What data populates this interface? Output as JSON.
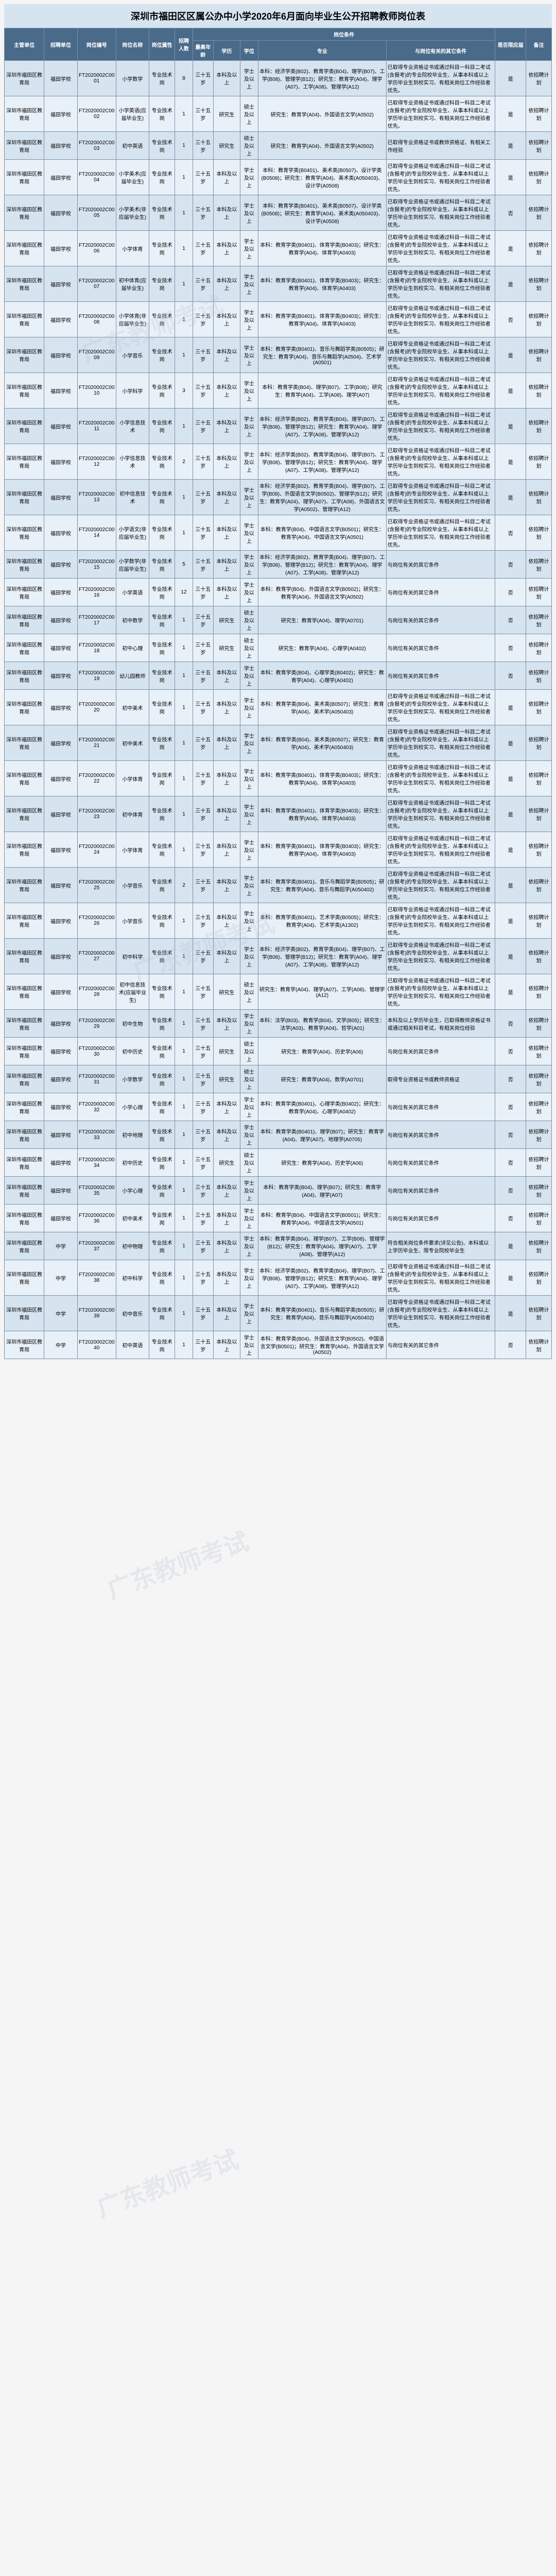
{
  "title": "深圳市福田区区属公办中小学2020年6月面向毕业生公开招聘教师岗位表",
  "watermark": "广东教师考试",
  "headerGroup": "岗位条件",
  "columns": [
    "主管单位",
    "招聘单位",
    "岗位编号",
    "岗位名称",
    "岗位属性",
    "招聘人数",
    "最高年龄",
    "学历",
    "学位",
    "专业",
    "与岗位有关的其它条件",
    "是否限应届",
    "备注"
  ],
  "stdOther1": "已取得专业资格证书或通过科目一科目二考试(含报考)的专业院校毕业生、从事本科或以上学历毕业生到校实习、有相关岗位工作经验者优先。",
  "stdOther2": "与岗位有关的其它条件",
  "rows": [
    {
      "org": "深圳市福田区教育局",
      "unit": "福田学校",
      "code": "FT2020002C0001",
      "name": "小学数学",
      "attr": "专业技术岗",
      "num": "8",
      "max": "三十五岁",
      "edu": "本科及以上",
      "deg": "学士及以上",
      "major": "本科：经济学类(B02)、教育学类(B04)、理学(B07)、工学(B08)、管理学(B12)；研究生：教育学(A04)、理学(A07)、工学(A08)、管理学(A12)",
      "other": "std1",
      "res": "是",
      "rem": "依招聘计划"
    },
    {
      "org": "深圳市福田区教育局",
      "unit": "福田学校",
      "code": "FT2020002C0002",
      "name": "小学英语(应届毕业生)",
      "attr": "专业技术岗",
      "num": "1",
      "max": "三十五岁",
      "edu": "研究生",
      "deg": "硕士及以上",
      "major": "研究生：教育学(A04)、外国语言文学(A0502)",
      "other": "std1",
      "res": "是",
      "rem": "依招聘计划"
    },
    {
      "org": "深圳市福田区教育局",
      "unit": "福田学校",
      "code": "FT2020002C0003",
      "name": "初中英语",
      "attr": "专业技术岗",
      "num": "1",
      "max": "三十五岁",
      "edu": "研究生",
      "deg": "硕士及以上",
      "major": "研究生：教育学(A04)、外国语言文学(A0502)",
      "other": "已取得专业资格证书或教师资格证、有相关工作经验",
      "res": "是",
      "rem": "依招聘计划"
    },
    {
      "org": "深圳市福田区教育局",
      "unit": "福田学校",
      "code": "FT2020002C0004",
      "name": "小学美术(应届毕业生)",
      "attr": "专业技术岗",
      "num": "1",
      "max": "三十五岁",
      "edu": "本科及以上",
      "deg": "学士及以上",
      "major": "本科：教育学类(B0401)、美术类(B0507)、设计学类(B0508)；研究生：教育学(A04)、美术类(A050403)、设计学(A0508)",
      "other": "std1",
      "res": "是",
      "rem": "依招聘计划"
    },
    {
      "org": "深圳市福田区教育局",
      "unit": "福田学校",
      "code": "FT2020002C0005",
      "name": "小学美术(非应届毕业生)",
      "attr": "专业技术岗",
      "num": "1",
      "max": "三十五岁",
      "edu": "本科及以上",
      "deg": "学士及以上",
      "major": "本科：教育学类(B0401)、美术类(B0507)、设计学类(B0508)；研究生：教育学(A04)、美术类(A050403)、设计学(A0508)",
      "other": "std1",
      "res": "否",
      "rem": "依招聘计划"
    },
    {
      "org": "深圳市福田区教育局",
      "unit": "福田学校",
      "code": "FT2020002C0006",
      "name": "小学体育",
      "attr": "专业技术岗",
      "num": "1",
      "max": "三十五岁",
      "edu": "本科及以上",
      "deg": "学士及以上",
      "major": "本科：教育学类(B0401)、体育学类(B0403)；研究生：教育学(A04)、体育学(A0403)",
      "other": "std1",
      "res": "是",
      "rem": "依招聘计划"
    },
    {
      "org": "深圳市福田区教育局",
      "unit": "福田学校",
      "code": "FT2020002C0007",
      "name": "初中体育(应届毕业生)",
      "attr": "专业技术岗",
      "num": "1",
      "max": "三十五岁",
      "edu": "本科及以上",
      "deg": "学士及以上",
      "major": "本科：教育学类(B0401)、体育学类(B0403)；研究生：教育学(A04)、体育学(A0403)",
      "other": "std1",
      "res": "是",
      "rem": "依招聘计划"
    },
    {
      "org": "深圳市福田区教育局",
      "unit": "福田学校",
      "code": "FT2020002C0008",
      "name": "小学体育(非应届毕业生)",
      "attr": "专业技术岗",
      "num": "1",
      "max": "三十五岁",
      "edu": "本科及以上",
      "deg": "学士及以上",
      "major": "本科：教育学类(B0401)、体育学类(B0403)；研究生：教育学(A04)、体育学(A0403)",
      "other": "std1",
      "res": "否",
      "rem": "依招聘计划"
    },
    {
      "org": "深圳市福田区教育局",
      "unit": "福田学校",
      "code": "FT2020002C0009",
      "name": "小学音乐",
      "attr": "专业技术岗",
      "num": "1",
      "max": "三十五岁",
      "edu": "本科及以上",
      "deg": "学士及以上",
      "major": "本科：教育学类(B0401)、音乐与舞蹈学类(B0505)；研究生：教育学(A04)、音乐与舞蹈学(A0504)、艺术学(A0501)",
      "other": "std1",
      "res": "是",
      "rem": "依招聘计划"
    },
    {
      "org": "深圳市福田区教育局",
      "unit": "福田学校",
      "code": "FT2020002C0010",
      "name": "小学科学",
      "attr": "专业技术岗",
      "num": "3",
      "max": "三十五岁",
      "edu": "本科及以上",
      "deg": "学士及以上",
      "major": "本科：教育学类(B04)、理学(B07)、工学(B08)；研究生：教育学(A04)、工学(A08)、理学(A07)",
      "other": "std1",
      "res": "是",
      "rem": "依招聘计划"
    },
    {
      "org": "深圳市福田区教育局",
      "unit": "福田学校",
      "code": "FT2020002C0011",
      "name": "小学信息技术",
      "attr": "专业技术岗",
      "num": "1",
      "max": "三十五岁",
      "edu": "本科及以上",
      "deg": "学士及以上",
      "major": "本科：经济学类(B02)、教育学类(B04)、理学(B07)、工学(B08)、管理学(B12)；研究生：教育学(A04)、理学(A07)、工学(A08)、管理学(A12)",
      "other": "std1",
      "res": "是",
      "rem": "依招聘计划"
    },
    {
      "org": "深圳市福田区教育局",
      "unit": "福田学校",
      "code": "FT2020002C0012",
      "name": "小学信息技术",
      "attr": "专业技术岗",
      "num": "2",
      "max": "三十五岁",
      "edu": "本科及以上",
      "deg": "学士及以上",
      "major": "本科：经济学类(B02)、教育学类(B04)、理学(B07)、工学(B08)、管理学(B12)；研究生：教育学(A04)、理学(A07)、工学(A08)、管理学(A12)",
      "other": "std1",
      "res": "是",
      "rem": "依招聘计划"
    },
    {
      "org": "深圳市福田区教育局",
      "unit": "福田学校",
      "code": "FT2020002C0013",
      "name": "初中信息技术",
      "attr": "专业技术岗",
      "num": "1",
      "max": "三十五岁",
      "edu": "本科及以上",
      "deg": "学士及以上",
      "major": "本科：经济学类(B02)、教育学类(B04)、理学(B07)、工学(B08)、外国语言文学(B0502)、管理学(B12)；研究生：教育学(A04)、理学(A07)、工学(A08)、外国语言文学(A0502)、管理学(A12)",
      "other": "std1",
      "res": "是",
      "rem": "依招聘计划"
    },
    {
      "org": "深圳市福田区教育局",
      "unit": "福田学校",
      "code": "FT2020002C0014",
      "name": "小学语文(非应届毕业生)",
      "attr": "专业技术岗",
      "num": "1",
      "max": "三十五岁",
      "edu": "本科及以上",
      "deg": "学士及以上",
      "major": "本科：教育学(B04)、中国语言文学(B0501)；研究生：教育学(A04)、中国语言文学(A0501)",
      "other": "std1",
      "res": "否",
      "rem": "依招聘计划"
    },
    {
      "org": "深圳市福田区教育局",
      "unit": "福田学校",
      "code": "FT2020002C0015",
      "name": "小学数学(非应届毕业生)",
      "attr": "专业技术岗",
      "num": "5",
      "max": "三十五岁",
      "edu": "本科及以上",
      "deg": "学士及以上",
      "major": "本科：经济学类(B02)、教育学类(B04)、理学(B07)、工学(B08)、管理学(B12)；研究生：教育学(A04)、理学(A07)、工学(A08)、管理学(A12)",
      "other": "std2",
      "res": "否",
      "rem": "依招聘计划"
    },
    {
      "org": "深圳市福田区教育局",
      "unit": "福田学校",
      "code": "FT2020002C0016",
      "name": "小学英语",
      "attr": "专业技术岗",
      "num": "12",
      "max": "三十五岁",
      "edu": "本科及以上",
      "deg": "学士及以上",
      "major": "本科：教育学(B04)、外国语言文学(B0502)；研究生：教育学(A04)、外国语言文学(A0502)",
      "other": "std2",
      "res": "否",
      "rem": "依招聘计划"
    },
    {
      "org": "深圳市福田区教育局",
      "unit": "福田学校",
      "code": "FT2020002C0017",
      "name": "初中数学",
      "attr": "专业技术岗",
      "num": "1",
      "max": "三十五岁",
      "edu": "研究生",
      "deg": "硕士及以上",
      "major": "研究生：教育学(A04)、理学(A0701)",
      "other": "std2",
      "res": "否",
      "rem": "依招聘计划"
    },
    {
      "org": "深圳市福田区教育局",
      "unit": "福田学校",
      "code": "FT2020002C0018",
      "name": "初中心理",
      "attr": "专业技术岗",
      "num": "1",
      "max": "三十五岁",
      "edu": "研究生",
      "deg": "硕士及以上",
      "major": "研究生：教育学(A04)、心理学(A0402)",
      "other": "std2",
      "res": "否",
      "rem": "依招聘计划"
    },
    {
      "org": "深圳市福田区教育局",
      "unit": "福田学校",
      "code": "FT2020002C0019",
      "name": "幼儿园教师",
      "attr": "专业技术岗",
      "num": "1",
      "max": "三十五岁",
      "edu": "本科及以上",
      "deg": "学士及以上",
      "major": "本科：教育学类(B04)、心理学类(B0402)；研究生：教育学(A04)、心理学(A0402)",
      "other": "std2",
      "res": "否",
      "rem": "依招聘计划"
    },
    {
      "org": "深圳市福田区教育局",
      "unit": "福田学校",
      "code": "FT2020002C0020",
      "name": "初中美术",
      "attr": "专业技术岗",
      "num": "1",
      "max": "三十五岁",
      "edu": "本科及以上",
      "deg": "学士及以上",
      "major": "本科：教育学类(B04)、美术类(B0507)；研究生：教育学(A04)、美术学(A050403)",
      "other": "std1",
      "res": "是",
      "rem": "依招聘计划"
    },
    {
      "org": "深圳市福田区教育局",
      "unit": "福田学校",
      "code": "FT2020002C0021",
      "name": "初中美术",
      "attr": "专业技术岗",
      "num": "1",
      "max": "三十五岁",
      "edu": "本科及以上",
      "deg": "学士及以上",
      "major": "本科：教育学类(B04)、美术类(B0507)；研究生：教育学(A04)、美术学(A050403)",
      "other": "std1",
      "res": "是",
      "rem": "依招聘计划"
    },
    {
      "org": "深圳市福田区教育局",
      "unit": "福田学校",
      "code": "FT2020002C0022",
      "name": "小学体育",
      "attr": "专业技术岗",
      "num": "1",
      "max": "三十五岁",
      "edu": "本科及以上",
      "deg": "学士及以上",
      "major": "本科：教育学类(B0401)、体育学类(B0403)；研究生：教育学(A04)、体育学(A0403)",
      "other": "std1",
      "res": "是",
      "rem": "依招聘计划"
    },
    {
      "org": "深圳市福田区教育局",
      "unit": "福田学校",
      "code": "FT2020002C0023",
      "name": "初中体育",
      "attr": "专业技术岗",
      "num": "1",
      "max": "三十五岁",
      "edu": "本科及以上",
      "deg": "学士及以上",
      "major": "本科：教育学类(B0401)、体育学类(B0403)；研究生：教育学(A04)、体育学(A0403)",
      "other": "std1",
      "res": "是",
      "rem": "依招聘计划"
    },
    {
      "org": "深圳市福田区教育局",
      "unit": "福田学校",
      "code": "FT2020002C0024",
      "name": "小学体育",
      "attr": "专业技术岗",
      "num": "1",
      "max": "三十五岁",
      "edu": "本科及以上",
      "deg": "学士及以上",
      "major": "本科：教育学类(B0401)、体育学类(B0403)；研究生：教育学(A04)、体育学(A0403)",
      "other": "std1",
      "res": "是",
      "rem": "依招聘计划"
    },
    {
      "org": "深圳市福田区教育局",
      "unit": "福田学校",
      "code": "FT2020002C0025",
      "name": "小学音乐",
      "attr": "专业技术岗",
      "num": "2",
      "max": "三十五岁",
      "edu": "本科及以上",
      "deg": "学士及以上",
      "major": "本科：教育学类(B0401)、音乐与舞蹈学类(B0505)；研究生：教育学(A04)、音乐与舞蹈学(A050402)",
      "other": "std1",
      "res": "是",
      "rem": "依招聘计划"
    },
    {
      "org": "深圳市福田区教育局",
      "unit": "福田学校",
      "code": "FT2020002C0026",
      "name": "小学音乐",
      "attr": "专业技术岗",
      "num": "1",
      "max": "三十五岁",
      "edu": "本科及以上",
      "deg": "学士及以上",
      "major": "本科：教育学类(B0401)、艺术学类(B0505)；研究生：教育学(A04)、艺术学类(A1302)",
      "other": "std1",
      "res": "是",
      "rem": "依招聘计划"
    },
    {
      "org": "深圳市福田区教育局",
      "unit": "福田学校",
      "code": "FT2020002C0027",
      "name": "初中科学",
      "attr": "专业技术岗",
      "num": "1",
      "max": "三十五岁",
      "edu": "本科及以上",
      "deg": "学士及以上",
      "major": "本科：经济学类(B02)、教育学类(B04)、理学(B07)、工学(B08)、管理学(B12)；研究生：教育学(A04)、理学(A07)、工学(A08)、管理学(A12)",
      "other": "std1",
      "res": "是",
      "rem": "依招聘计划"
    },
    {
      "org": "深圳市福田区教育局",
      "unit": "福田学校",
      "code": "FT2020002C0028",
      "name": "初中信息技术(应届毕业生)",
      "attr": "专业技术岗",
      "num": "1",
      "max": "三十五岁",
      "edu": "研究生",
      "deg": "硕士及以上",
      "major": "研究生：教育学(A04)、理学(A07)、工学(A08)、管理学(A12)",
      "other": "std1",
      "res": "是",
      "rem": "依招聘计划"
    },
    {
      "org": "深圳市福田区教育局",
      "unit": "福田学校",
      "code": "FT2020002C0029",
      "name": "初中生物",
      "attr": "专业技术岗",
      "num": "1",
      "max": "三十五岁",
      "edu": "本科及以上",
      "deg": "学士及以上",
      "major": "本科：法学(B03)、教育学(B04)、文学(B05)；研究生：法学(A03)、教育学(A04)、哲学(A01)",
      "other": "本科及以上学历毕业生，已取得教师资格证书或通过相关科目考试，有相关岗位经验",
      "res": "否",
      "rem": "依招聘计划"
    },
    {
      "org": "深圳市福田区教育局",
      "unit": "福田学校",
      "code": "FT2020002C0030",
      "name": "初中历史",
      "attr": "专业技术岗",
      "num": "1",
      "max": "三十五岁",
      "edu": "研究生",
      "deg": "硕士及以上",
      "major": "研究生：教育学(A04)、历史学(A06)",
      "other": "std2",
      "res": "否",
      "rem": "依招聘计划"
    },
    {
      "org": "深圳市福田区教育局",
      "unit": "福田学校",
      "code": "FT2020002C0031",
      "name": "小学数学",
      "attr": "专业技术岗",
      "num": "1",
      "max": "三十五岁",
      "edu": "研究生",
      "deg": "硕士及以上",
      "major": "研究生：教育学(A04)、数学(A0701)",
      "other": "取得专业资格证书或教师资格证",
      "res": "否",
      "rem": "依招聘计划"
    },
    {
      "org": "深圳市福田区教育局",
      "unit": "福田学校",
      "code": "FT2020002C0032",
      "name": "小学心理",
      "attr": "专业技术岗",
      "num": "1",
      "max": "三十五岁",
      "edu": "本科及以上",
      "deg": "学士及以上",
      "major": "本科：教育学类(B0401)、心理学类(B0402)；研究生：教育学(A04)、心理学(A0402)",
      "other": "std2",
      "res": "否",
      "rem": "依招聘计划"
    },
    {
      "org": "深圳市福田区教育局",
      "unit": "福田学校",
      "code": "FT2020002C0033",
      "name": "初中地理",
      "attr": "专业技术岗",
      "num": "1",
      "max": "三十五岁",
      "edu": "本科及以上",
      "deg": "学士及以上",
      "major": "本科：教育学类(B0401)、理学(B07)；研究生：教育学(A04)、理学(A07)、地理学(A0705)",
      "other": "std2",
      "res": "否",
      "rem": "依招聘计划"
    },
    {
      "org": "深圳市福田区教育局",
      "unit": "福田学校",
      "code": "FT2020002C0034",
      "name": "初中历史",
      "attr": "专业技术岗",
      "num": "1",
      "max": "三十五岁",
      "edu": "研究生",
      "deg": "硕士及以上",
      "major": "研究生：教育学(A04)、历史学(A06)",
      "other": "std2",
      "res": "否",
      "rem": "依招聘计划"
    },
    {
      "org": "深圳市福田区教育局",
      "unit": "福田学校",
      "code": "FT2020002C0035",
      "name": "小学心理",
      "attr": "专业技术岗",
      "num": "1",
      "max": "三十五岁",
      "edu": "本科及以上",
      "deg": "学士及以上",
      "major": "本科：教育学类(B04)、理学(B07)；研究生：教育学(A04)、理学(A07)",
      "other": "std2",
      "res": "否",
      "rem": "依招聘计划"
    },
    {
      "org": "深圳市福田区教育局",
      "unit": "福田学校",
      "code": "FT2020002C0036",
      "name": "初中美术",
      "attr": "专业技术岗",
      "num": "1",
      "max": "三十五岁",
      "edu": "本科及以上",
      "deg": "学士及以上",
      "major": "本科：教育学(B04)、中国语言文学(B0501)；研究生：教育学(A04)、中国语言文学(A0501)",
      "other": "std2",
      "res": "否",
      "rem": "依招聘计划"
    },
    {
      "org": "深圳市福田区教育局",
      "unit": "中学",
      "code": "FT2020002C0037",
      "name": "初中物理",
      "attr": "专业技术岗",
      "num": "1",
      "max": "三十五岁",
      "edu": "本科及以上",
      "deg": "学士及以上",
      "major": "本科：教育学类(B04)、理学(B07)、工学(B08)、管理学(B12)；研究生：教育学(A04)、理学(A07)、工学(A08)、管理学(A12)",
      "other": "符合相关岗位条件要求(详见公告)、本科或以上学历毕业生、限专业院校毕业生",
      "res": "是",
      "rem": "依招聘计划"
    },
    {
      "org": "深圳市福田区教育局",
      "unit": "中学",
      "code": "FT2020002C0038",
      "name": "初中科学",
      "attr": "专业技术岗",
      "num": "1",
      "max": "三十五岁",
      "edu": "本科及以上",
      "deg": "学士及以上",
      "major": "本科：经济学类(B02)、教育学类(B04)、理学(B07)、工学(B08)、管理学(B12)；研究生：教育学(A04)、理学(A07)、工学(A08)、管理学(A12)",
      "other": "std1",
      "res": "是",
      "rem": "依招聘计划"
    },
    {
      "org": "深圳市福田区教育局",
      "unit": "中学",
      "code": "FT2020002C0039",
      "name": "初中音乐",
      "attr": "专业技术岗",
      "num": "1",
      "max": "三十五岁",
      "edu": "本科及以上",
      "deg": "学士及以上",
      "major": "本科：教育学类(B0401)、音乐与舞蹈学类(B0505)；研究生：教育学(A04)、音乐与舞蹈学(A050402)",
      "other": "std1",
      "res": "是",
      "rem": "依招聘计划"
    },
    {
      "org": "深圳市福田区教育局",
      "unit": "中学",
      "code": "FT2020002C0040",
      "name": "初中英语",
      "attr": "专业技术岗",
      "num": "1",
      "max": "三十五岁",
      "edu": "本科及以上",
      "deg": "学士及以上",
      "major": "本科：教育学类(B04)、外国语言文学(B0502)、中国语言文学(B0501)；研究生：教育学(A04)、外国语言文学(A0502)",
      "other": "std2",
      "res": "否",
      "rem": "依招聘计划"
    }
  ]
}
